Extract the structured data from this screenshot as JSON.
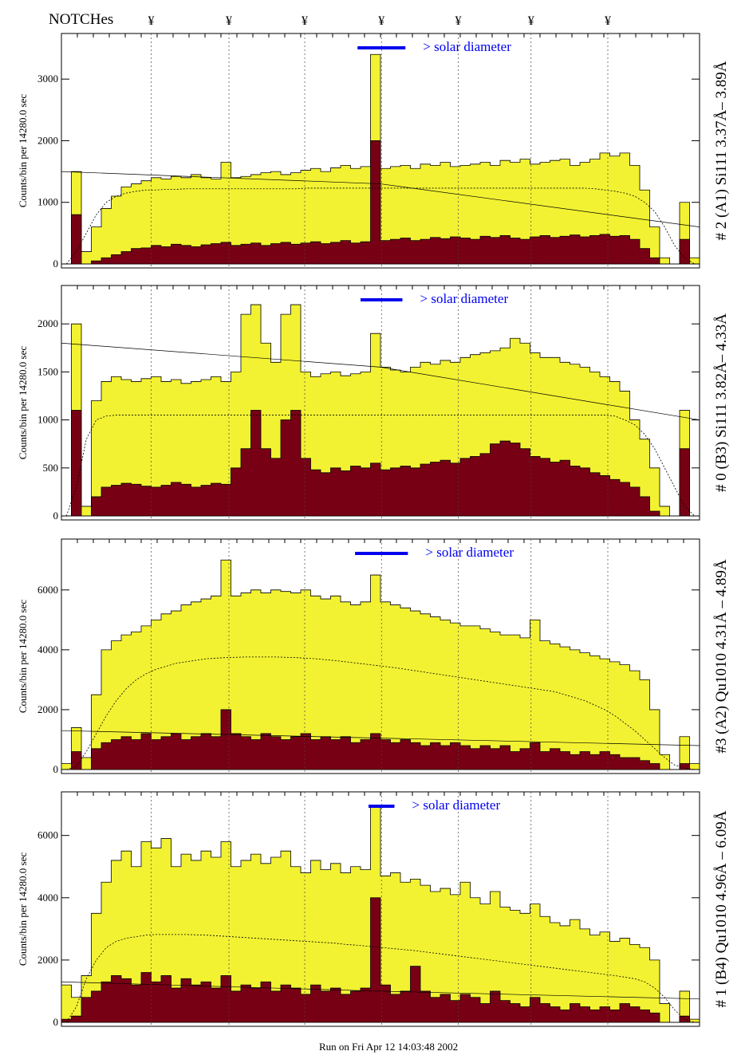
{
  "header": {
    "notches_label": "NOTCHes",
    "notch_symbol": "¥"
  },
  "footer": {
    "run_text": "Run on Fri Apr 12 14:03:48 2002"
  },
  "colors": {
    "total": "#f2f232",
    "second": "#780014",
    "solar_bar": "#0000ee"
  },
  "chart_data": {
    "type": "bar",
    "subtype": "stacked histogram panels",
    "ylabel": "Counts/bin per  14280.0 sec",
    "notches": [
      9.0,
      16.8,
      24.4,
      32.1,
      39.8,
      47.1,
      54.8
    ],
    "grid": "vertical dotted at notches",
    "panels": [
      {
        "title": "# 2 (A1) Si111  3.37Å– 3.89Å",
        "ylim": [
          0,
          3740
        ],
        "yticks": [
          0,
          1000,
          2000,
          3000
        ],
        "solar_label": "> solar diameter",
        "solar_diameter_bins": 4.8,
        "total": [
          0,
          1500,
          200,
          600,
          900,
          1100,
          1250,
          1300,
          1350,
          1400,
          1380,
          1420,
          1400,
          1450,
          1400,
          1380,
          1650,
          1400,
          1420,
          1450,
          1480,
          1500,
          1450,
          1480,
          1520,
          1550,
          1500,
          1560,
          1600,
          1550,
          1580,
          3400,
          1550,
          1580,
          1600,
          1550,
          1620,
          1600,
          1650,
          1580,
          1600,
          1620,
          1650,
          1600,
          1680,
          1650,
          1700,
          1620,
          1650,
          1680,
          1700,
          1600,
          1650,
          1700,
          1800,
          1750,
          1800,
          1600,
          1200,
          600,
          100,
          0,
          1000,
          100
        ],
        "second": [
          0,
          800,
          0,
          50,
          100,
          150,
          200,
          250,
          260,
          300,
          280,
          320,
          300,
          280,
          310,
          330,
          350,
          300,
          320,
          340,
          300,
          330,
          350,
          320,
          340,
          360,
          330,
          350,
          380,
          340,
          360,
          2000,
          380,
          400,
          420,
          380,
          400,
          430,
          410,
          440,
          420,
          400,
          450,
          430,
          460,
          420,
          400,
          440,
          460,
          430,
          450,
          470,
          440,
          460,
          480,
          450,
          460,
          400,
          250,
          100,
          0,
          0,
          400,
          0
        ],
        "smooth": [
          0,
          200,
          500,
          800,
          1000,
          1100,
          1150,
          1180,
          1200,
          1200,
          1210,
          1210,
          1220,
          1220,
          1220,
          1220,
          1220,
          1220,
          1220,
          1220,
          1220,
          1220,
          1220,
          1220,
          1230,
          1230,
          1230,
          1230,
          1230,
          1230,
          1230,
          1230,
          1230,
          1230,
          1230,
          1230,
          1230,
          1230,
          1230,
          1230,
          1230,
          1230,
          1230,
          1230,
          1230,
          1230,
          1230,
          1230,
          1230,
          1230,
          1230,
          1230,
          1230,
          1220,
          1200,
          1180,
          1150,
          1100,
          1000,
          850,
          600,
          300,
          100,
          0
        ],
        "fit": [
          1500,
          1300,
          600
        ]
      },
      {
        "title": "# 0 (B3) Si111  3.82Å– 4.33Å",
        "ylim": [
          0,
          2400
        ],
        "yticks": [
          0,
          500,
          1000,
          1500,
          2000
        ],
        "solar_label": "> solar diameter",
        "solar_diameter_bins": 4.2,
        "total": [
          0,
          2000,
          100,
          1200,
          1400,
          1450,
          1420,
          1400,
          1430,
          1450,
          1400,
          1420,
          1380,
          1400,
          1420,
          1450,
          1400,
          1500,
          2100,
          2200,
          1800,
          1600,
          2100,
          2200,
          1500,
          1450,
          1480,
          1500,
          1460,
          1480,
          1500,
          1900,
          1550,
          1520,
          1500,
          1550,
          1600,
          1580,
          1620,
          1600,
          1650,
          1680,
          1700,
          1720,
          1750,
          1850,
          1800,
          1700,
          1650,
          1650,
          1600,
          1580,
          1550,
          1500,
          1450,
          1400,
          1300,
          1000,
          800,
          500,
          100,
          0,
          1100,
          0
        ],
        "second": [
          0,
          1100,
          0,
          200,
          300,
          320,
          340,
          330,
          310,
          300,
          320,
          350,
          330,
          300,
          320,
          340,
          330,
          500,
          700,
          1100,
          700,
          600,
          1000,
          1100,
          600,
          480,
          450,
          500,
          470,
          520,
          500,
          550,
          480,
          500,
          520,
          500,
          540,
          560,
          580,
          550,
          600,
          620,
          650,
          750,
          780,
          760,
          700,
          620,
          600,
          560,
          580,
          520,
          500,
          450,
          420,
          380,
          350,
          300,
          200,
          50,
          0,
          0,
          700,
          0
        ],
        "smooth": [
          0,
          300,
          800,
          1000,
          1040,
          1050,
          1050,
          1050,
          1050,
          1050,
          1050,
          1050,
          1050,
          1050,
          1050,
          1050,
          1050,
          1050,
          1050,
          1050,
          1050,
          1050,
          1050,
          1050,
          1050,
          1050,
          1050,
          1050,
          1050,
          1050,
          1050,
          1050,
          1050,
          1050,
          1050,
          1050,
          1050,
          1050,
          1050,
          1050,
          1050,
          1050,
          1050,
          1050,
          1050,
          1050,
          1050,
          1050,
          1050,
          1050,
          1050,
          1050,
          1050,
          1050,
          1050,
          1040,
          1000,
          950,
          850,
          700,
          500,
          300,
          100,
          0
        ],
        "fit": [
          1800,
          1550,
          1000
        ]
      },
      {
        "title": "#3 (A2) Qu1010  4.31Å – 4.89Å",
        "ylim": [
          0,
          7700
        ],
        "yticks": [
          0,
          2000,
          4000,
          6000
        ],
        "solar_label": "> solar diameter",
        "solar_diameter_bins": 5.3,
        "total": [
          200,
          1400,
          400,
          2500,
          4000,
          4300,
          4500,
          4600,
          4800,
          5000,
          5200,
          5300,
          5500,
          5600,
          5700,
          5800,
          7000,
          5800,
          5900,
          6000,
          5900,
          6000,
          5950,
          5900,
          6000,
          5800,
          5700,
          5800,
          5600,
          5500,
          5600,
          6500,
          5600,
          5500,
          5400,
          5300,
          5200,
          5100,
          5000,
          4900,
          4800,
          4800,
          4700,
          4600,
          4500,
          4500,
          4400,
          5000,
          4300,
          4200,
          4100,
          4000,
          3900,
          3800,
          3700,
          3600,
          3500,
          3300,
          3000,
          2000,
          500,
          0,
          1100,
          200
        ],
        "second": [
          0,
          600,
          0,
          700,
          900,
          1000,
          1100,
          1000,
          1200,
          1000,
          1100,
          1200,
          1000,
          1100,
          1200,
          1100,
          2000,
          1200,
          1100,
          1000,
          1200,
          1100,
          1000,
          1100,
          1200,
          1000,
          1100,
          1000,
          1100,
          900,
          1000,
          1200,
          1000,
          900,
          1000,
          900,
          800,
          900,
          800,
          900,
          800,
          700,
          800,
          700,
          800,
          600,
          700,
          900,
          600,
          700,
          600,
          500,
          600,
          500,
          600,
          500,
          400,
          400,
          300,
          200,
          0,
          0,
          200,
          0
        ],
        "smooth": [
          0,
          100,
          600,
          1200,
          1800,
          2300,
          2700,
          3000,
          3200,
          3350,
          3450,
          3550,
          3600,
          3650,
          3700,
          3720,
          3740,
          3750,
          3760,
          3760,
          3760,
          3760,
          3750,
          3740,
          3720,
          3700,
          3670,
          3640,
          3600,
          3560,
          3520,
          3480,
          3440,
          3400,
          3350,
          3300,
          3250,
          3200,
          3150,
          3100,
          3050,
          3000,
          2950,
          2900,
          2850,
          2800,
          2750,
          2700,
          2650,
          2600,
          2500,
          2400,
          2300,
          2150,
          2000,
          1800,
          1550,
          1300,
          1000,
          700,
          400,
          150,
          50,
          0
        ],
        "fit": [
          1300,
          1050,
          800
        ]
      },
      {
        "title": "# 1 (B4) Qu1010 4.96Å – 6.09Å",
        "ylim": [
          0,
          7400
        ],
        "yticks": [
          0,
          2000,
          4000,
          6000
        ],
        "solar_label": "> solar diameter",
        "solar_diameter_bins": 2.6,
        "total": [
          1200,
          800,
          1500,
          3500,
          4500,
          5200,
          5500,
          5000,
          5800,
          5600,
          5900,
          5000,
          5400,
          5200,
          5500,
          5300,
          5800,
          5000,
          5200,
          5400,
          5100,
          5300,
          5500,
          5000,
          4800,
          5200,
          4900,
          5100,
          4800,
          5000,
          4900,
          6900,
          4700,
          4800,
          4500,
          4600,
          4400,
          4200,
          4300,
          4100,
          4500,
          4000,
          3800,
          4200,
          3700,
          3600,
          3500,
          3800,
          3400,
          3200,
          3100,
          3300,
          3000,
          2800,
          2900,
          2600,
          2700,
          2500,
          2400,
          2000,
          600,
          0,
          1000,
          100
        ],
        "second": [
          100,
          200,
          800,
          1000,
          1300,
          1500,
          1400,
          1200,
          1600,
          1300,
          1500,
          1100,
          1400,
          1200,
          1300,
          1100,
          1500,
          1000,
          1200,
          1100,
          1300,
          1000,
          1200,
          1100,
          900,
          1200,
          1000,
          1100,
          900,
          1000,
          1100,
          4000,
          1200,
          900,
          1000,
          1800,
          1000,
          800,
          900,
          700,
          900,
          800,
          600,
          1000,
          700,
          600,
          500,
          800,
          600,
          500,
          400,
          600,
          500,
          400,
          500,
          400,
          600,
          500,
          400,
          300,
          0,
          0,
          200,
          0
        ],
        "smooth": [
          0,
          500,
          1400,
          2000,
          2400,
          2600,
          2700,
          2750,
          2800,
          2820,
          2820,
          2820,
          2820,
          2810,
          2800,
          2780,
          2760,
          2740,
          2720,
          2700,
          2680,
          2660,
          2640,
          2620,
          2600,
          2580,
          2560,
          2540,
          2500,
          2480,
          2450,
          2420,
          2390,
          2360,
          2330,
          2300,
          2260,
          2220,
          2180,
          2140,
          2100,
          2060,
          2020,
          1980,
          1940,
          1900,
          1860,
          1820,
          1780,
          1740,
          1700,
          1660,
          1620,
          1580,
          1540,
          1500,
          1450,
          1400,
          1300,
          1100,
          800,
          400,
          100,
          0
        ],
        "fit": [
          1300,
          1000,
          750
        ]
      }
    ]
  }
}
